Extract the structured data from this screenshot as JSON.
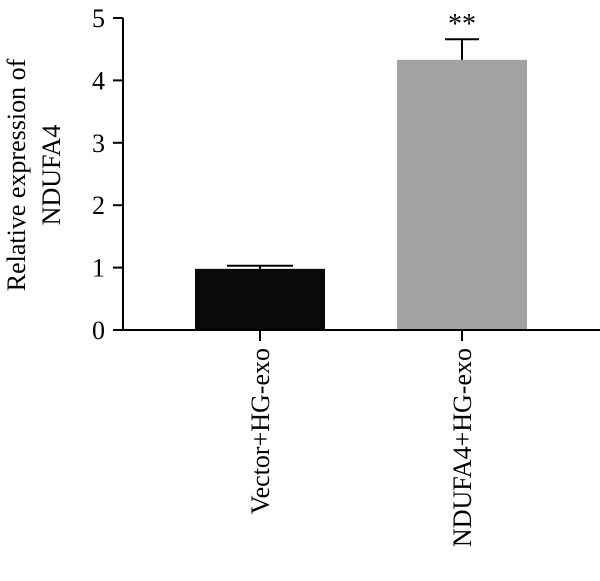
{
  "chart_data": {
    "type": "bar",
    "title": "",
    "ylabel_lines": [
      "Relative expression of",
      "NDUFA4"
    ],
    "xlabel": "",
    "categories": [
      "Vector+HG-exo",
      "NDUFA4+HG-exo"
    ],
    "values": [
      0.98,
      4.33
    ],
    "error": [
      0.05,
      0.33
    ],
    "annotations": [
      "",
      "**"
    ],
    "colors": [
      "#0a0a0a",
      "#a3a3a3"
    ],
    "ylim": [
      0,
      5
    ],
    "yticks": [
      "0",
      "1",
      "2",
      "3",
      "4",
      "5"
    ],
    "grid": false,
    "legend": "none"
  }
}
